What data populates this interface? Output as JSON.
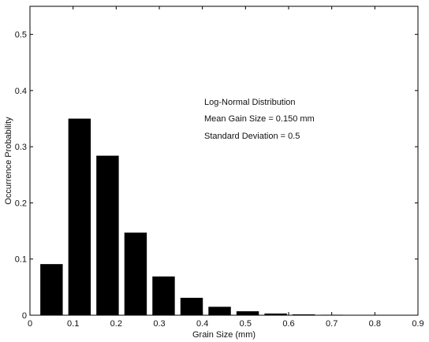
{
  "chart_data": {
    "type": "bar",
    "title": "",
    "xlabel": "Grain Size (mm)",
    "ylabel": "Occurrence Probability",
    "xlim": [
      0,
      0.9
    ],
    "ylim": [
      0,
      0.55
    ],
    "x_ticks": [
      "0",
      "0.1",
      "0.2",
      "0.3",
      "0.4",
      "0.5",
      "0.6",
      "0.7",
      "0.8",
      "0.9"
    ],
    "y_ticks": [
      "0",
      "0.1",
      "0.2",
      "0.3",
      "0.4",
      "0.5"
    ],
    "x": [
      0.05,
      0.115,
      0.18,
      0.245,
      0.31,
      0.375,
      0.44,
      0.505,
      0.57,
      0.635,
      0.7,
      0.765,
      0.83
    ],
    "values": [
      0.091,
      0.35,
      0.284,
      0.147,
      0.069,
      0.031,
      0.015,
      0.007,
      0.003,
      0.0015,
      0.0008,
      0.0004,
      0.0002
    ],
    "bar_width": 0.052,
    "bar_color": "#000000",
    "grid": false,
    "annotations": [
      "Log-Normal Distribution",
      "Mean Gain Size = 0.150 mm",
      "Standard Deviation = 0.5"
    ]
  }
}
